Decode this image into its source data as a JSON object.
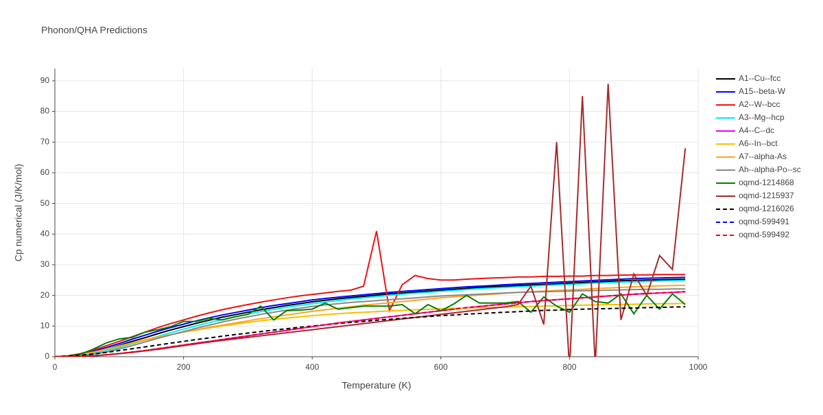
{
  "chart_data": {
    "type": "line",
    "title": "Phonon/QHA Predictions",
    "x_label": "Temperature (K)",
    "y_label": "Cp numerical (J/K/mol)",
    "xlim": [
      0,
      1000
    ],
    "ylim": [
      0,
      94
    ],
    "xticks": [
      0,
      200,
      400,
      600,
      800,
      1000
    ],
    "yticks": [
      0,
      10,
      20,
      30,
      40,
      50,
      60,
      70,
      80,
      90
    ],
    "grid": true,
    "x": [
      0,
      20,
      40,
      60,
      80,
      100,
      120,
      140,
      160,
      180,
      200,
      220,
      240,
      260,
      280,
      300,
      320,
      340,
      360,
      380,
      400,
      420,
      440,
      460,
      480,
      500,
      520,
      540,
      560,
      580,
      600,
      620,
      640,
      660,
      680,
      700,
      720,
      740,
      760,
      780,
      800,
      820,
      840,
      860,
      880,
      900,
      920,
      940,
      960,
      980
    ],
    "series": [
      {
        "name": "A1--Cu--fcc",
        "color": "#000000",
        "dash": "solid",
        "values": [
          0,
          0.15,
          0.6,
          1.4,
          2.5,
          3.7,
          5,
          6.2,
          7.5,
          8.7,
          9.8,
          10.9,
          11.9,
          12.9,
          13.7,
          14.5,
          15.3,
          16,
          16.7,
          17.3,
          17.9,
          18.4,
          18.9,
          19.3,
          19.7,
          20.1,
          20.5,
          20.8,
          21.1,
          21.4,
          21.7,
          22,
          22.3,
          22.6,
          22.8,
          23,
          23.2,
          23.4,
          23.6,
          23.8,
          24,
          24.2,
          24.4,
          24.6,
          24.8,
          24.9,
          25,
          25.1,
          25.2,
          25.3
        ]
      },
      {
        "name": "A15--beta-W",
        "color": "#0000ff",
        "dash": "solid",
        "values": [
          0,
          0.2,
          0.8,
          1.8,
          3,
          4.3,
          5.7,
          7,
          8.3,
          9.5,
          10.6,
          11.7,
          12.7,
          13.6,
          14.4,
          15.2,
          16,
          16.7,
          17.3,
          17.9,
          18.5,
          19,
          19.4,
          19.8,
          20.2,
          20.6,
          21,
          21.3,
          21.6,
          21.9,
          22.2,
          22.5,
          22.8,
          23,
          23.2,
          23.5,
          23.7,
          23.9,
          24.1,
          24.3,
          24.5,
          24.7,
          24.9,
          25.1,
          25.3,
          25.5,
          25.6,
          25.7,
          25.8,
          25.9
        ]
      },
      {
        "name": "A2--W--bcc",
        "color": "#ee1111",
        "dash": "solid",
        "values": [
          0,
          0.3,
          1,
          2.2,
          3.6,
          5,
          6.5,
          8,
          9.5,
          10.8,
          12,
          13.2,
          14.3,
          15.3,
          16.2,
          17,
          17.8,
          18.5,
          19.2,
          19.8,
          20.3,
          20.8,
          21.3,
          21.7,
          23,
          41,
          15,
          23.5,
          26.5,
          25.5,
          25,
          25,
          25.3,
          25.5,
          25.7,
          25.8,
          26,
          26,
          26.2,
          26.2,
          26.3,
          26.3,
          26.5,
          26.5,
          26.6,
          26.7,
          26.7,
          26.8,
          26.8,
          26.8
        ]
      },
      {
        "name": "A3--Mg--hcp",
        "color": "#00eeee",
        "dash": "solid",
        "values": [
          0,
          0.1,
          0.4,
          1,
          1.9,
          3,
          4.2,
          5.4,
          6.6,
          7.8,
          9,
          10.1,
          11.1,
          12.1,
          13,
          13.9,
          14.7,
          15.4,
          16.1,
          16.7,
          17.3,
          17.8,
          18.3,
          18.8,
          19.2,
          19.6,
          20,
          20.4,
          20.7,
          21,
          21.3,
          21.6,
          21.9,
          22.2,
          22.4,
          22.6,
          22.8,
          23,
          23.2,
          23.4,
          23.6,
          23.8,
          24,
          24.1,
          24.3,
          24.4,
          24.5,
          24.7,
          24.8,
          24.9
        ]
      },
      {
        "name": "A4--C--dc",
        "color": "#ee00ee",
        "dash": "solid",
        "values": [
          0,
          0,
          0.1,
          0.3,
          0.6,
          1,
          1.5,
          2,
          2.6,
          3.2,
          3.8,
          4.4,
          5,
          5.6,
          6.2,
          6.8,
          7.4,
          8,
          8.6,
          9.2,
          9.8,
          10.4,
          11,
          11.5,
          12,
          12.5,
          13,
          13.5,
          14,
          14.5,
          15,
          15.5,
          16,
          16.4,
          16.8,
          17.2,
          17.6,
          18,
          18.3,
          18.6,
          18.9,
          19.2,
          19.5,
          19.8,
          20.1,
          20.4,
          20.6,
          20.8,
          21,
          21.2
        ]
      },
      {
        "name": "A6--In--bct",
        "color": "#f5c000",
        "dash": "solid",
        "values": [
          0,
          0.2,
          0.7,
          1.5,
          2.5,
          3.5,
          4.5,
          5.5,
          6.4,
          7.2,
          8,
          8.7,
          9.4,
          10,
          10.6,
          11.2,
          11.7,
          12.2,
          12.6,
          13,
          13.4,
          13.7,
          14,
          14.3,
          14.5,
          14.7,
          14.9,
          15.1,
          15.3,
          15.5,
          15.6,
          15.8,
          15.9,
          16,
          16.1,
          16.2,
          16.3,
          16.4,
          16.5,
          16.6,
          16.7,
          16.8,
          16.9,
          17,
          17,
          17.1,
          17.2,
          17.3,
          17.3,
          17.4
        ]
      },
      {
        "name": "A7--alpha-As",
        "color": "#ffa520",
        "dash": "solid",
        "values": [
          0,
          0.2,
          0.7,
          1.5,
          2.4,
          3.4,
          4.4,
          5.4,
          6.3,
          7.2,
          8,
          8.8,
          9.6,
          10.3,
          11,
          11.7,
          12.4,
          13,
          13.6,
          14.2,
          14.8,
          15.3,
          15.8,
          16.3,
          16.8,
          17.2,
          17.6,
          18,
          18.4,
          18.8,
          19.2,
          19.5,
          19.8,
          20.1,
          20.4,
          20.7,
          21,
          21.2,
          21.4,
          21.6,
          21.8,
          22,
          22.2,
          22.4,
          22.6,
          22.8,
          23,
          23.1,
          23.2,
          23.3
        ]
      },
      {
        "name": "Ah--alpha-Po--sc",
        "color": "#888888",
        "dash": "solid",
        "values": [
          0,
          0.1,
          0.3,
          0.8,
          1.5,
          2.5,
          3.6,
          4.8,
          6,
          7.1,
          8.2,
          9.3,
          10.3,
          11.3,
          12.2,
          13,
          13.8,
          14.5,
          15.2,
          15.8,
          16.4,
          16.9,
          17.3,
          17.7,
          18,
          18.3,
          18.6,
          18.9,
          19.2,
          19.5,
          19.8,
          20,
          20.2,
          20.4,
          20.6,
          20.8,
          21,
          21.1,
          21.2,
          21.3,
          21.4,
          21.5,
          21.6,
          21.7,
          21.8,
          21.9,
          22,
          22,
          22.1,
          22.1
        ]
      },
      {
        "name": "oqmd-1214868",
        "color": "#008000",
        "dash": "solid",
        "values": [
          0,
          0.2,
          0.8,
          2.5,
          4.5,
          5.8,
          6.3,
          8,
          8.8,
          9.8,
          11.5,
          11.5,
          12.5,
          12,
          13,
          13.8,
          16.5,
          12,
          15,
          15.2,
          15.5,
          17.5,
          15.5,
          16,
          16.5,
          16.5,
          16.5,
          17,
          14,
          17,
          15,
          17.2,
          20,
          17.5,
          17.5,
          17.5,
          18,
          14.5,
          19.5,
          16.5,
          14.5,
          20.5,
          18,
          17.5,
          20.5,
          14,
          20,
          15.5,
          20.5,
          17
        ]
      },
      {
        "name": "oqmd-1215937",
        "color": "#a52a2a",
        "dash": "solid",
        "values": [
          0,
          0,
          0.1,
          0.3,
          0.6,
          1,
          1.4,
          1.9,
          2.4,
          3,
          3.6,
          4.2,
          4.8,
          5.3,
          5.8,
          6.3,
          6.8,
          7.3,
          7.8,
          8.3,
          8.8,
          9.3,
          9.8,
          10.3,
          10.8,
          11.3,
          11.8,
          12.3,
          12.8,
          13.3,
          13.8,
          14.3,
          14.8,
          15.3,
          15.8,
          16.3,
          17,
          23,
          10.5,
          70,
          -4,
          85,
          -3,
          89,
          12,
          27,
          20,
          33,
          28.5,
          68
        ]
      },
      {
        "name": "oqmd-1216026",
        "color": "#000000",
        "dash": "dash",
        "values": [
          0,
          0.2,
          0.5,
          0.9,
          1.4,
          2,
          2.6,
          3.2,
          3.8,
          4.4,
          5,
          5.6,
          6.1,
          6.7,
          7.2,
          7.7,
          8.2,
          8.7,
          9.1,
          9.6,
          10,
          10.4,
          10.8,
          11.2,
          11.5,
          11.9,
          12.2,
          12.5,
          12.8,
          13.1,
          13.4,
          13.6,
          13.9,
          14.1,
          14.3,
          14.5,
          14.7,
          14.9,
          15.1,
          15.2,
          15.4,
          15.5,
          15.6,
          15.7,
          15.8,
          15.9,
          16,
          16.1,
          16.2,
          16.3
        ]
      },
      {
        "name": "oqmd-599491",
        "color": "#0000ff",
        "dash": "dash",
        "values": [
          0,
          0,
          0.1,
          0.3,
          0.6,
          1,
          1.5,
          2,
          2.6,
          3.2,
          3.8,
          4.4,
          5,
          5.6,
          6.2,
          6.8,
          7.4,
          8,
          8.6,
          9.2,
          9.8,
          10.4,
          11,
          11.5,
          12,
          12.5,
          13,
          13.5,
          14,
          14.5,
          15,
          15.5,
          16,
          16.4,
          16.8,
          17.2,
          17.6,
          18,
          18.3,
          18.6,
          18.9,
          19.2,
          19.5,
          19.8,
          20.1,
          20.4,
          20.6,
          20.8,
          21,
          21.2
        ]
      },
      {
        "name": "oqmd-599492",
        "color": "#ff0000",
        "dash": "dash",
        "values": [
          0,
          0,
          0.1,
          0.3,
          0.6,
          1,
          1.5,
          2,
          2.6,
          3.2,
          3.8,
          4.4,
          5,
          5.6,
          6.2,
          6.8,
          7.4,
          8,
          8.6,
          9.2,
          9.8,
          10.4,
          11,
          11.5,
          12,
          12.5,
          13,
          13.5,
          14,
          14.5,
          15,
          15.5,
          16,
          16.4,
          16.8,
          17.2,
          17.6,
          18,
          18.3,
          18.6,
          18.9,
          19.2,
          19.5,
          19.8,
          20.1,
          20.4,
          20.6,
          20.8,
          21,
          21.2
        ]
      }
    ]
  }
}
